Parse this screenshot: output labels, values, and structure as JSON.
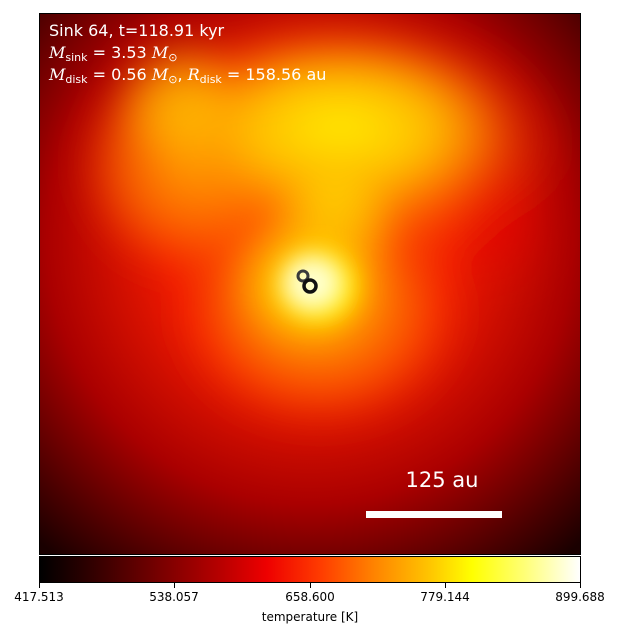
{
  "annotation": {
    "line1": "Sink 64, t=118.91 kyr",
    "mass_sink_label": "M",
    "mass_sink_sub": "sink",
    "mass_sink_value": " = 3.53",
    "msun_symbol": "M",
    "msun_sub": "⊙",
    "mass_disk_label": "M",
    "mass_disk_sub": "disk",
    "mass_disk_value": " = 0.56",
    "radius_label": "R",
    "radius_sub": "disk",
    "radius_value": " = 158.56 au"
  },
  "scale_bar": {
    "label": "125 au"
  },
  "colorbar": {
    "title": "temperature [K]",
    "ticks": [
      "417.513",
      "538.057",
      "658.600",
      "779.144",
      "899.688"
    ],
    "colormap": "hot"
  }
}
